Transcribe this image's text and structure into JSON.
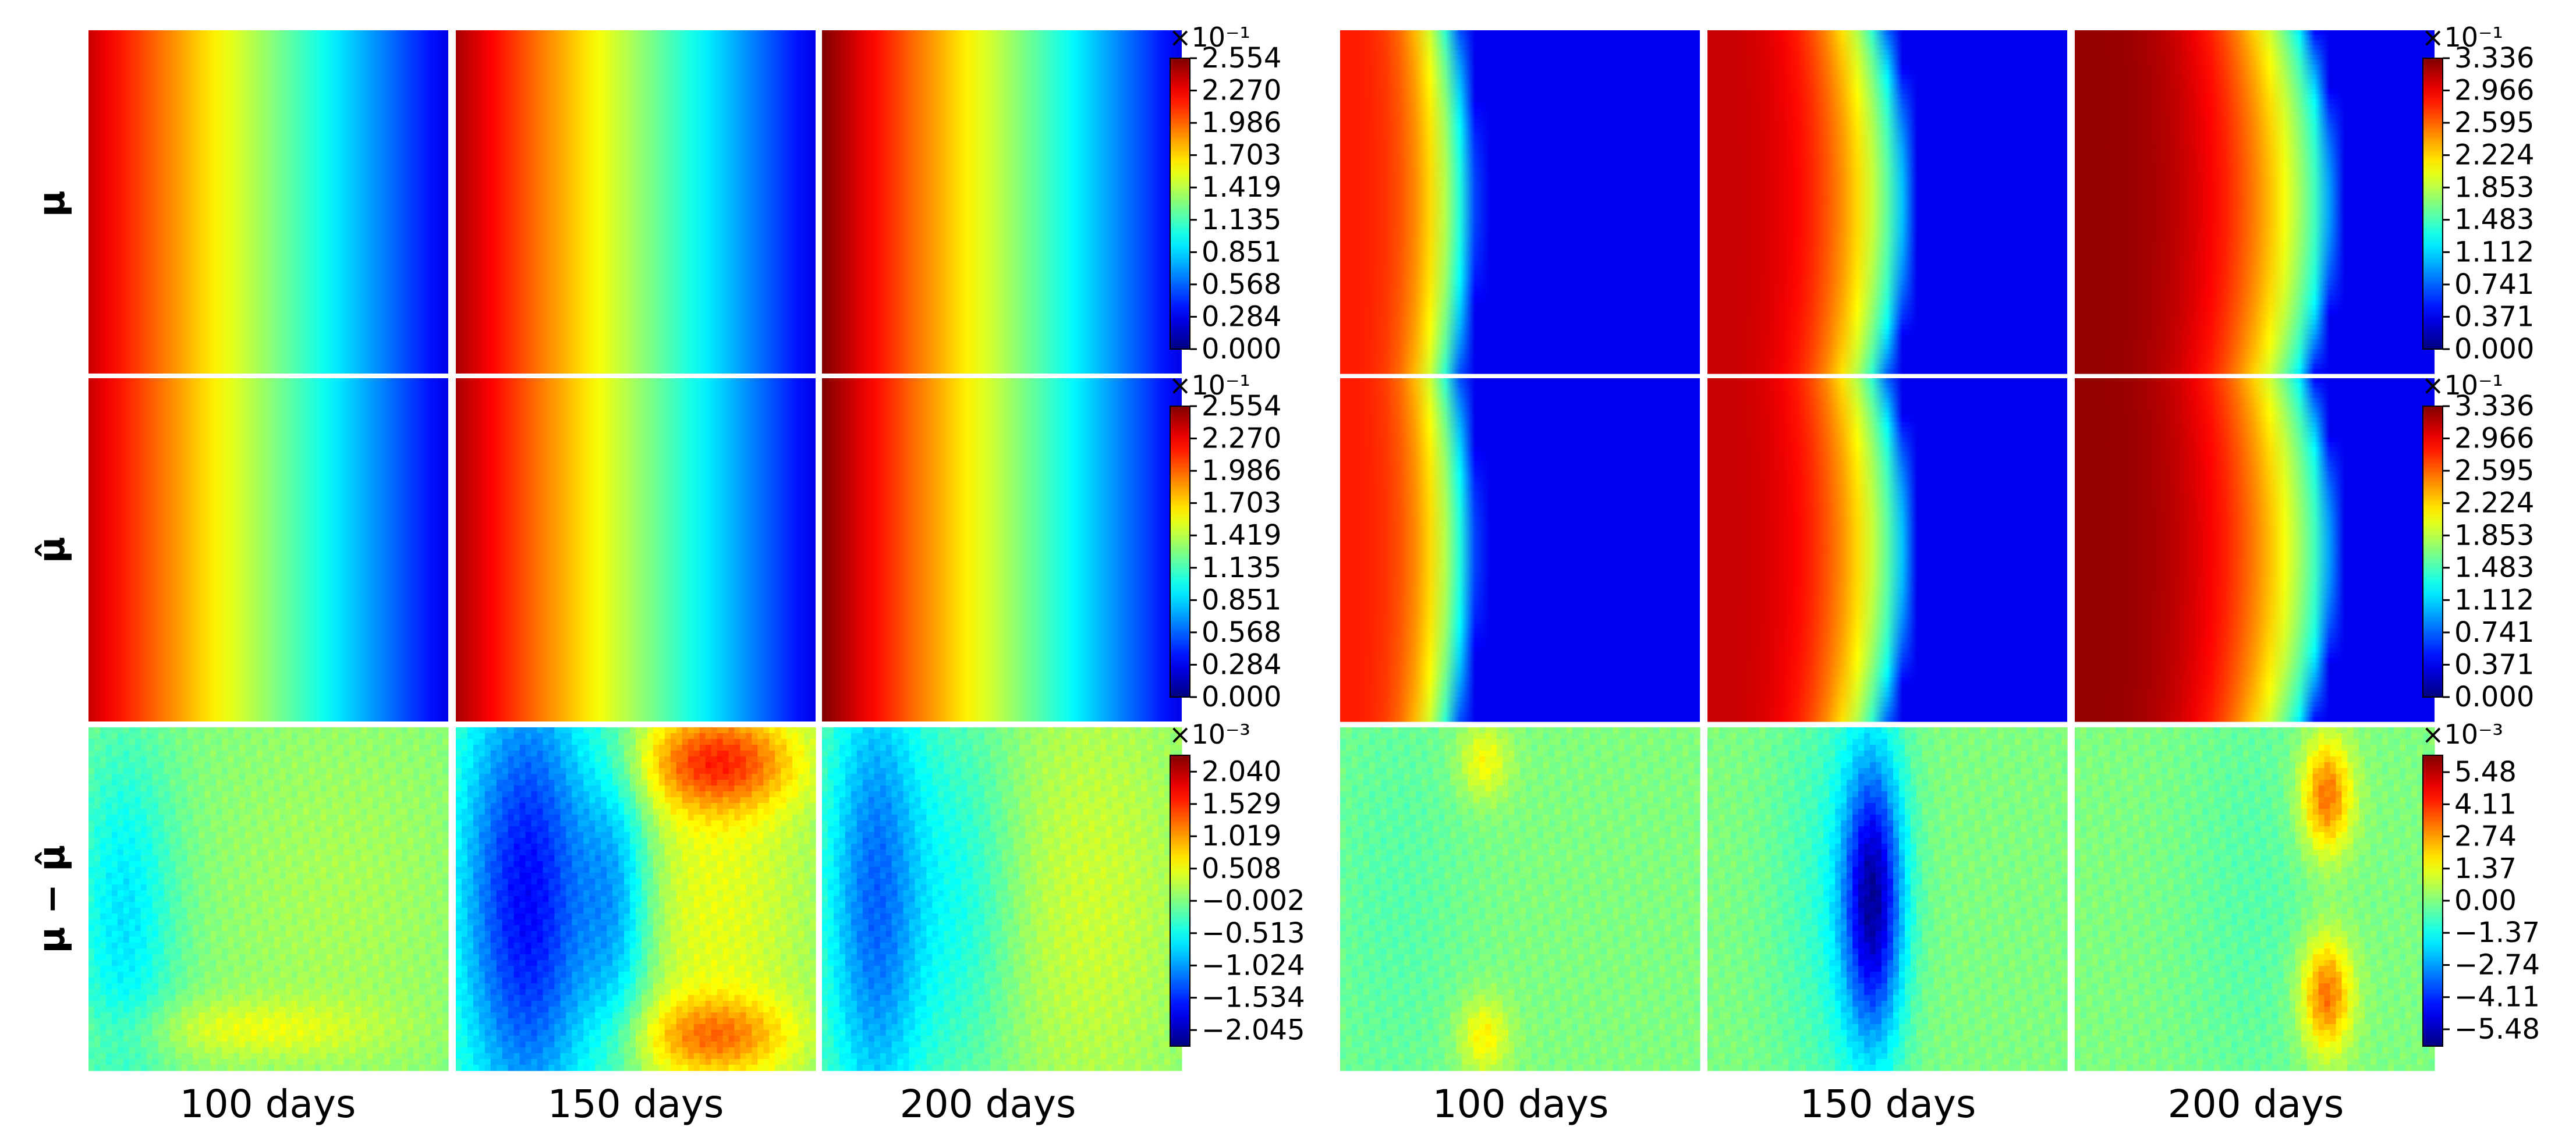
{
  "figure": {
    "row_labels": [
      "μ",
      "μ̂",
      "μ − μ̂"
    ],
    "column_labels": [
      "100 days",
      "150 days",
      "200 days"
    ]
  },
  "chart_data": [
    {
      "type": "heatmap",
      "panel": "left",
      "colormap": "jet",
      "columns": [
        "100 days",
        "150 days",
        "200 days"
      ],
      "rows": [
        {
          "label": "μ",
          "colorbar": {
            "exponent_label": "×10⁻¹",
            "range": [
              0.0,
              2.554
            ],
            "ticks": [
              "2.554",
              "2.270",
              "1.986",
              "1.703",
              "1.419",
              "1.135",
              "0.851",
              "0.568",
              "0.284",
              "0.000"
            ]
          },
          "field": "linear-front",
          "front_position": [
            1.0,
            1.0,
            1.0
          ],
          "max_level": [
            0.93,
            0.96,
            1.0
          ],
          "bowing": [
            0,
            0,
            0
          ]
        },
        {
          "label": "μ̂",
          "colorbar": {
            "exponent_label": "×10⁻¹",
            "range": [
              0.0,
              2.554
            ],
            "ticks": [
              "2.554",
              "2.270",
              "1.986",
              "1.703",
              "1.419",
              "1.135",
              "0.851",
              "0.568",
              "0.284",
              "0.000"
            ]
          },
          "field": "linear-front",
          "front_position": [
            1.0,
            1.0,
            1.0
          ],
          "max_level": [
            0.93,
            0.96,
            1.0
          ],
          "bowing": [
            0,
            0,
            0
          ]
        },
        {
          "label": "μ − μ̂",
          "colorbar": {
            "exponent_label": "×10⁻³",
            "range": [
              -2.3,
              2.3
            ],
            "ticks": [
              "2.040",
              "1.529",
              "1.019",
              "0.508",
              "−0.002",
              "−0.513",
              "−1.024",
              "−1.534",
              "−2.045"
            ]
          },
          "field": "error-left",
          "blobs": [
            [
              {
                "x": 0.1,
                "y": 0.55,
                "sx": 0.1,
                "sy": 0.35,
                "a": -0.3
              },
              {
                "x": 0.45,
                "y": 0.88,
                "sx": 0.25,
                "sy": 0.06,
                "a": 0.18
              },
              {
                "x": 0.7,
                "y": 0.5,
                "sx": 0.25,
                "sy": 0.4,
                "a": 0.08
              }
            ],
            [
              {
                "x": 0.2,
                "y": 0.5,
                "sx": 0.14,
                "sy": 0.5,
                "a": -0.75
              },
              {
                "x": 0.45,
                "y": 0.5,
                "sx": 0.07,
                "sy": 0.3,
                "a": -0.35
              },
              {
                "x": 0.73,
                "y": 0.1,
                "sx": 0.15,
                "sy": 0.1,
                "a": 0.55
              },
              {
                "x": 0.72,
                "y": 0.9,
                "sx": 0.15,
                "sy": 0.08,
                "a": 0.4
              },
              {
                "x": 0.72,
                "y": 0.5,
                "sx": 0.2,
                "sy": 0.5,
                "a": 0.2
              }
            ],
            [
              {
                "x": 0.15,
                "y": 0.5,
                "sx": 0.1,
                "sy": 0.5,
                "a": -0.55
              },
              {
                "x": 0.4,
                "y": 0.5,
                "sx": 0.1,
                "sy": 0.4,
                "a": -0.2
              },
              {
                "x": 0.75,
                "y": 0.5,
                "sx": 0.2,
                "sy": 0.5,
                "a": 0.15
              }
            ]
          ]
        }
      ]
    },
    {
      "type": "heatmap",
      "panel": "right",
      "colormap": "jet",
      "columns": [
        "100 days",
        "150 days",
        "200 days"
      ],
      "rows": [
        {
          "label": "μ",
          "colorbar": {
            "exponent_label": "×10⁻¹",
            "range": [
              0.0,
              3.336
            ],
            "ticks": [
              "3.336",
              "2.966",
              "2.595",
              "2.224",
              "1.853",
              "1.483",
              "1.112",
              "0.741",
              "0.371",
              "0.000"
            ]
          },
          "field": "sharp-front",
          "front_position": [
            0.3,
            0.47,
            0.62
          ],
          "max_level": [
            0.85,
            0.93,
            0.98
          ],
          "bowing": [
            0.04,
            0.06,
            0.07
          ]
        },
        {
          "label": "μ̂",
          "colorbar": {
            "exponent_label": "×10⁻¹",
            "range": [
              0.0,
              3.336
            ],
            "ticks": [
              "3.336",
              "2.966",
              "2.595",
              "2.224",
              "1.853",
              "1.483",
              "1.112",
              "0.741",
              "0.371",
              "0.000"
            ]
          },
          "field": "sharp-front",
          "front_position": [
            0.3,
            0.47,
            0.62
          ],
          "max_level": [
            0.85,
            0.93,
            0.98
          ],
          "bowing": [
            0.04,
            0.06,
            0.07
          ]
        },
        {
          "label": "μ − μ̂",
          "colorbar": {
            "exponent_label": "×10⁻³",
            "range": [
              -6.2,
              6.2
            ],
            "ticks": [
              "5.48",
              "4.11",
              "2.74",
              "1.37",
              "0.00",
              "−1.37",
              "−2.74",
              "−4.11",
              "−5.48"
            ]
          },
          "field": "error-right",
          "blobs": [
            [
              {
                "x": 0.4,
                "y": 0.1,
                "sx": 0.05,
                "sy": 0.08,
                "a": 0.25
              },
              {
                "x": 0.4,
                "y": 0.9,
                "sx": 0.05,
                "sy": 0.08,
                "a": 0.28
              },
              {
                "x": 0.15,
                "y": 0.5,
                "sx": 0.15,
                "sy": 0.5,
                "a": -0.08
              }
            ],
            [
              {
                "x": 0.46,
                "y": 0.5,
                "sx": 0.06,
                "sy": 0.3,
                "a": -0.85
              },
              {
                "x": 0.35,
                "y": 0.5,
                "sx": 0.12,
                "sy": 0.5,
                "a": -0.15
              }
            ],
            [
              {
                "x": 0.7,
                "y": 0.2,
                "sx": 0.05,
                "sy": 0.12,
                "a": 0.55
              },
              {
                "x": 0.7,
                "y": 0.78,
                "sx": 0.05,
                "sy": 0.12,
                "a": 0.55
              },
              {
                "x": 0.5,
                "y": 0.5,
                "sx": 0.15,
                "sy": 0.5,
                "a": -0.08
              }
            ]
          ]
        }
      ]
    }
  ]
}
